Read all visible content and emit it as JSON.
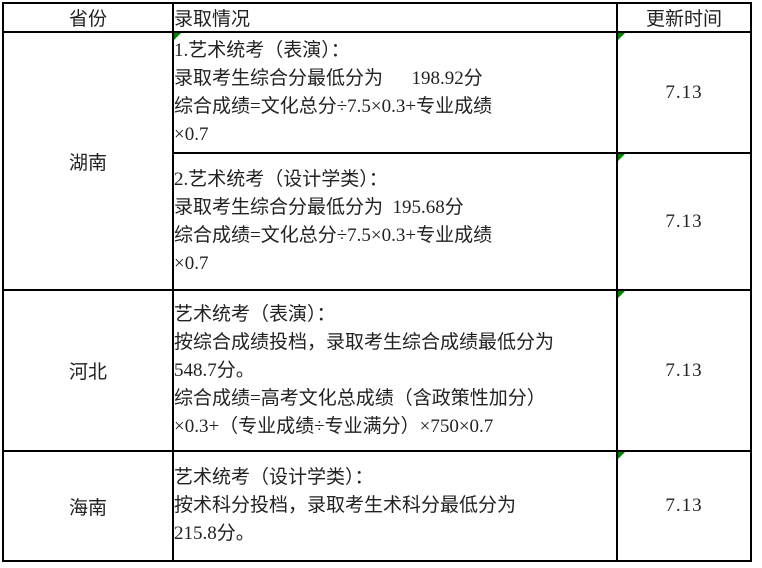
{
  "colors": {
    "border": "#000000",
    "background": "#ffffff",
    "text": "#222222",
    "flag_green": "#008000"
  },
  "icons": {
    "cell_flag": "green-corner-triangle"
  },
  "table": {
    "headers": {
      "province": "省份",
      "admission": "录取情况",
      "update_time": "更新时间"
    },
    "provinces": [
      {
        "name": "湖南"
      },
      {
        "name": "河北"
      },
      {
        "name": "海南"
      }
    ],
    "entries": [
      {
        "text": "1.艺术统考（表演）：\n录取考生综合分最低分为      198.92分\n综合成绩=文化总分÷7.5×0.3+专业成绩\n×0.7",
        "time": "7.13",
        "flag_admission": true,
        "flag_time": true
      },
      {
        "text": "2.艺术统考（设计学类）：\n录取考生综合分最低分为  195.68分\n综合成绩=文化总分÷7.5×0.3+专业成绩\n×0.7",
        "time": "7.13",
        "flag_admission": false,
        "flag_time": true
      },
      {
        "text": "艺术统考（表演）：\n按综合成绩投档，录取考生综合成绩最低分为\n548.7分。\n综合成绩=高考文化总成绩（含政策性加分）\n×0.3+（专业成绩÷专业满分）×750×0.7",
        "time": "7.13",
        "flag_admission": false,
        "flag_time": true
      },
      {
        "text": "艺术统考（设计学类）：\n按术科分投档，录取考生术科分最低分为\n215.8分。",
        "time": "7.13",
        "flag_admission": false,
        "flag_time": true
      }
    ]
  }
}
